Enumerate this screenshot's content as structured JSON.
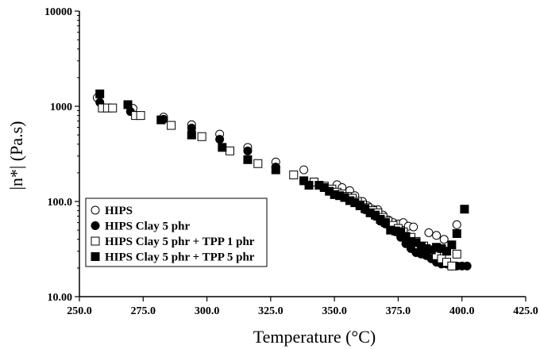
{
  "chart_data": {
    "type": "scatter",
    "xlabel": "Temperature (°C)",
    "ylabel": "|n*| (Pa.s)",
    "xlim": [
      250,
      425
    ],
    "ylim": [
      10,
      10000
    ],
    "y_scale": "log",
    "x_ticks": [
      250,
      275,
      300,
      325,
      350,
      375,
      400,
      425
    ],
    "x_tick_labels": [
      "250.0",
      "275.0",
      "300.0",
      "325.0",
      "350.0",
      "375.0",
      "400.0",
      "425.0"
    ],
    "y_ticks": [
      10,
      100,
      1000,
      10000
    ],
    "y_tick_labels": [
      "10.00",
      "100.0",
      "1000",
      "10000"
    ],
    "grid": false,
    "legend_position": "bottom-left",
    "series": [
      {
        "name": "HIPS",
        "marker": "open-circle",
        "points": [
          [
            257,
            1230
          ],
          [
            271,
            950
          ],
          [
            283,
            770
          ],
          [
            294,
            640
          ],
          [
            305,
            510
          ],
          [
            316,
            370
          ],
          [
            327,
            260
          ],
          [
            338,
            215
          ],
          [
            351,
            150
          ],
          [
            353,
            140
          ],
          [
            356,
            130
          ],
          [
            358,
            115
          ],
          [
            361,
            100
          ],
          [
            363,
            90
          ],
          [
            365,
            83
          ],
          [
            367,
            82
          ],
          [
            369,
            72
          ],
          [
            371,
            64
          ],
          [
            373,
            60
          ],
          [
            375,
            58
          ],
          [
            377,
            60
          ],
          [
            379,
            55
          ],
          [
            381,
            54
          ],
          [
            387,
            47
          ],
          [
            390,
            44
          ],
          [
            393,
            40
          ],
          [
            398,
            57
          ]
        ]
      },
      {
        "name": "HIPS Clay 5 phr",
        "marker": "filled-circle",
        "points": [
          [
            258,
            1100
          ],
          [
            270,
            880
          ],
          [
            283,
            730
          ],
          [
            294,
            590
          ],
          [
            305,
            450
          ],
          [
            316,
            340
          ],
          [
            327,
            230
          ],
          [
            338,
            165
          ],
          [
            350,
            125
          ],
          [
            352,
            118
          ],
          [
            354,
            112
          ],
          [
            356,
            105
          ],
          [
            358,
            97
          ],
          [
            360,
            90
          ],
          [
            362,
            82
          ],
          [
            364,
            76
          ],
          [
            366,
            70
          ],
          [
            368,
            62
          ],
          [
            370,
            58
          ],
          [
            372,
            53
          ],
          [
            374,
            48
          ],
          [
            376,
            42
          ],
          [
            378,
            36
          ],
          [
            380,
            32
          ],
          [
            382,
            29
          ],
          [
            384,
            28
          ],
          [
            386,
            27
          ],
          [
            388,
            25
          ],
          [
            390,
            23
          ],
          [
            392,
            22
          ],
          [
            394,
            22
          ],
          [
            396,
            21
          ],
          [
            398,
            21
          ],
          [
            400,
            21
          ],
          [
            402,
            21
          ]
        ]
      },
      {
        "name": "HIPS Clay 5 phr + TPP 1 phr",
        "marker": "open-square",
        "points": [
          [
            259,
            960
          ],
          [
            261,
            960
          ],
          [
            263,
            960
          ],
          [
            272,
            800
          ],
          [
            274,
            800
          ],
          [
            286,
            630
          ],
          [
            298,
            480
          ],
          [
            309,
            340
          ],
          [
            320,
            250
          ],
          [
            334,
            190
          ],
          [
            342,
            160
          ],
          [
            346,
            145
          ],
          [
            349,
            135
          ],
          [
            351,
            125
          ],
          [
            353,
            120
          ],
          [
            355,
            113
          ],
          [
            357,
            108
          ],
          [
            359,
            100
          ],
          [
            361,
            92
          ],
          [
            363,
            86
          ],
          [
            365,
            80
          ],
          [
            367,
            76
          ],
          [
            369,
            68
          ],
          [
            371,
            62
          ],
          [
            373,
            56
          ],
          [
            375,
            52
          ],
          [
            377,
            48
          ],
          [
            380,
            42
          ],
          [
            382,
            38
          ],
          [
            385,
            34
          ],
          [
            388,
            31
          ],
          [
            390,
            27
          ],
          [
            392,
            25
          ],
          [
            394,
            23
          ],
          [
            396,
            21
          ],
          [
            398,
            28
          ]
        ]
      },
      {
        "name": "HIPS Clay 5 phr + TPP 5 phr",
        "marker": "filled-square",
        "points": [
          [
            258,
            1350
          ],
          [
            269,
            1040
          ],
          [
            282,
            720
          ],
          [
            294,
            500
          ],
          [
            306,
            370
          ],
          [
            316,
            275
          ],
          [
            327,
            215
          ],
          [
            338,
            165
          ],
          [
            340,
            148
          ],
          [
            344,
            148
          ],
          [
            346,
            140
          ],
          [
            348,
            128
          ],
          [
            350,
            118
          ],
          [
            352,
            115
          ],
          [
            354,
            110
          ],
          [
            356,
            102
          ],
          [
            358,
            97
          ],
          [
            360,
            90
          ],
          [
            362,
            84
          ],
          [
            364,
            76
          ],
          [
            366,
            72
          ],
          [
            368,
            65
          ],
          [
            370,
            60
          ],
          [
            372,
            50
          ],
          [
            374,
            49
          ],
          [
            376,
            48
          ],
          [
            378,
            43
          ],
          [
            380,
            38
          ],
          [
            382,
            37
          ],
          [
            384,
            34
          ],
          [
            386,
            32
          ],
          [
            388,
            31
          ],
          [
            390,
            33
          ],
          [
            392,
            32
          ],
          [
            394,
            30
          ],
          [
            396,
            35
          ],
          [
            398,
            46
          ],
          [
            401,
            83
          ]
        ]
      }
    ]
  }
}
